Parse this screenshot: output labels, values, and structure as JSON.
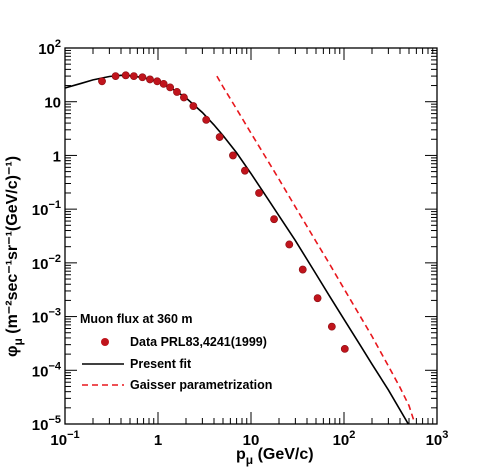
{
  "chart_data": {
    "type": "scatter",
    "xscale": "log",
    "yscale": "log",
    "xlim": [
      0.1,
      1000
    ],
    "ylim": [
      1e-05,
      100
    ],
    "grid": false,
    "legend_position": "bottom-left",
    "xlabel": {
      "main": "p",
      "sub": "μ",
      "unit": " (GeV/c)"
    },
    "ylabel": {
      "main": "φ",
      "sub": "μ",
      "rest": " (m⁻²sec⁻¹sr⁻¹(GeV/c)⁻¹)"
    },
    "x_ticks": [
      {
        "base": "10",
        "exp": "−1",
        "value": 0.1
      },
      {
        "base": "1",
        "exp": "",
        "value": 1
      },
      {
        "base": "10",
        "exp": "",
        "value": 10
      },
      {
        "base": "10",
        "exp": "2",
        "value": 100
      },
      {
        "base": "10",
        "exp": "3",
        "value": 1000
      }
    ],
    "y_ticks": [
      {
        "base": "10",
        "exp": "−5",
        "value": 1e-05
      },
      {
        "base": "10",
        "exp": "−4",
        "value": 0.0001
      },
      {
        "base": "10",
        "exp": "−3",
        "value": 0.001
      },
      {
        "base": "10",
        "exp": "−2",
        "value": 0.01
      },
      {
        "base": "10",
        "exp": "−1",
        "value": 0.1
      },
      {
        "base": "1",
        "exp": "",
        "value": 1
      },
      {
        "base": "10",
        "exp": "",
        "value": 10
      },
      {
        "base": "10",
        "exp": "2",
        "value": 100
      }
    ],
    "legend_title": "Muon flux at 360 m",
    "series": [
      {
        "name": "Data PRL83,4241(1999)",
        "kind": "points",
        "color": "#c0141c",
        "x": [
          0.25,
          0.35,
          0.45,
          0.55,
          0.68,
          0.82,
          0.98,
          1.15,
          1.35,
          1.6,
          1.9,
          2.4,
          3.3,
          4.6,
          6.4,
          8.6,
          12.2,
          17.7,
          25.8,
          36,
          52,
          74,
          102
        ],
        "y": [
          24,
          30,
          31,
          30,
          28.5,
          26,
          24,
          21.5,
          18.5,
          15.2,
          12,
          8.3,
          4.6,
          2.2,
          1.0,
          0.52,
          0.2,
          0.065,
          0.022,
          0.0075,
          0.0022,
          0.00065,
          0.00025
        ]
      },
      {
        "name": "Present fit",
        "kind": "line",
        "color": "#000000",
        "dash": "",
        "x": [
          0.1,
          0.15,
          0.2,
          0.3,
          0.4,
          0.5,
          0.7,
          1,
          1.5,
          2,
          3,
          4,
          5,
          7,
          10,
          15,
          20,
          30,
          50,
          70,
          100,
          150,
          200,
          300,
          500,
          750
        ],
        "y": [
          18,
          22,
          25.5,
          29.5,
          31,
          30.5,
          28,
          23.5,
          16.5,
          11.8,
          6.3,
          3.7,
          2.35,
          1.12,
          0.46,
          0.16,
          0.075,
          0.026,
          0.0062,
          0.0024,
          0.00089,
          0.00029,
          0.00013,
          4.3e-05,
          9.5e-06,
          3.3e-06
        ]
      },
      {
        "name": "Gaisser parametrization",
        "kind": "line",
        "color": "#e8161c",
        "dash": "6,4",
        "x": [
          4.3,
          5,
          7,
          10,
          15,
          20,
          30,
          50,
          70,
          100,
          150,
          200,
          300,
          400,
          500,
          560
        ],
        "y": [
          30,
          19,
          7.3,
          2.6,
          0.82,
          0.36,
          0.11,
          0.025,
          0.0095,
          0.0033,
          0.001,
          0.00043,
          0.00012,
          4.8e-05,
          2.2e-05,
          1.2e-05
        ]
      }
    ]
  }
}
